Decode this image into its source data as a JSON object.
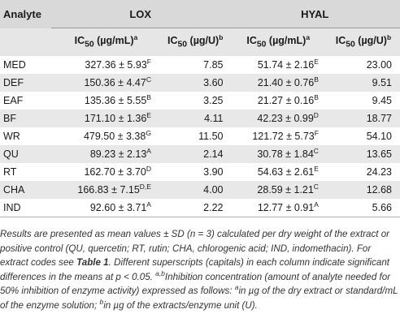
{
  "headers": {
    "analyte": "Analyte",
    "lox": "LOX",
    "hyal": "HYAL",
    "ic50_main": "IC",
    "ic50_sub": "50",
    "unit_ml": " (µg/mL)",
    "unit_u": " (µg/U)",
    "sup_a": "a",
    "sup_b": "b"
  },
  "rows": [
    {
      "analyte": "MED",
      "lox_ml": "327.36 ± 5.93",
      "lox_ml_sup": "F",
      "lox_u": "7.85",
      "hyal_ml": "51.74 ± 2.16",
      "hyal_ml_sup": "E",
      "hyal_u": "23.00"
    },
    {
      "analyte": "DEF",
      "lox_ml": "150.36 ± 4.47",
      "lox_ml_sup": "C",
      "lox_u": "3.60",
      "hyal_ml": "21.40 ± 0.76",
      "hyal_ml_sup": "B",
      "hyal_u": "9.51"
    },
    {
      "analyte": "EAF",
      "lox_ml": "135.36 ± 5.55",
      "lox_ml_sup": "B",
      "lox_u": "3.25",
      "hyal_ml": "21.27 ± 0.16",
      "hyal_ml_sup": "B",
      "hyal_u": "9.45"
    },
    {
      "analyte": "BF",
      "lox_ml": "171.10 ± 1.36",
      "lox_ml_sup": "E",
      "lox_u": "4.11",
      "hyal_ml": "42.23 ± 0.99",
      "hyal_ml_sup": "D",
      "hyal_u": "18.77"
    },
    {
      "analyte": "WR",
      "lox_ml": "479.50 ± 3.38",
      "lox_ml_sup": "G",
      "lox_u": "11.50",
      "hyal_ml": "121.72 ± 5.73",
      "hyal_ml_sup": "F",
      "hyal_u": "54.10"
    },
    {
      "analyte": "QU",
      "lox_ml": "89.23 ± 2.13",
      "lox_ml_sup": "A",
      "lox_u": "2.14",
      "hyal_ml": "30.78 ± 1.84",
      "hyal_ml_sup": "C",
      "hyal_u": "13.65"
    },
    {
      "analyte": "RT",
      "lox_ml": "162.70 ± 3.70",
      "lox_ml_sup": "D",
      "lox_u": "3.90",
      "hyal_ml": "54.63 ± 2.61",
      "hyal_ml_sup": "E",
      "hyal_u": "24.23"
    },
    {
      "analyte": "CHA",
      "lox_ml": "166.83 ± 7.15",
      "lox_ml_sup": "D,E",
      "lox_u": "4.00",
      "hyal_ml": "28.59 ± 1.21",
      "hyal_ml_sup": "C",
      "hyal_u": "12.68"
    },
    {
      "analyte": "IND",
      "lox_ml": "92.60 ± 3.71",
      "lox_ml_sup": "A",
      "lox_u": "2.22",
      "hyal_ml": "12.77 ± 0.91",
      "hyal_ml_sup": "A",
      "hyal_u": "5.66"
    }
  ],
  "footnote": {
    "part1": "Results are presented as mean values ± SD (n = 3) calculated per dry weight of the extract or positive control (QU, quercetin; RT, rutin; CHA, chlorogenic acid; IND, indomethacin). For extract codes see ",
    "table_ref": "Table 1",
    "part2": ". Different superscripts (capitals) in each column indicate significant differences in the means at p < 0.05. ",
    "sup_ab": "a,b",
    "part3": "Inhibition concentration (amount of analyte needed for 50% inhibition of enzyme activity) expressed as follows: ",
    "sup_a": "a",
    "part4": "in µg of the dry extract or standard/mL of the enzyme solution; ",
    "sup_b": "b",
    "part5": "in µg of the extracts/enzyme unit (U)."
  }
}
